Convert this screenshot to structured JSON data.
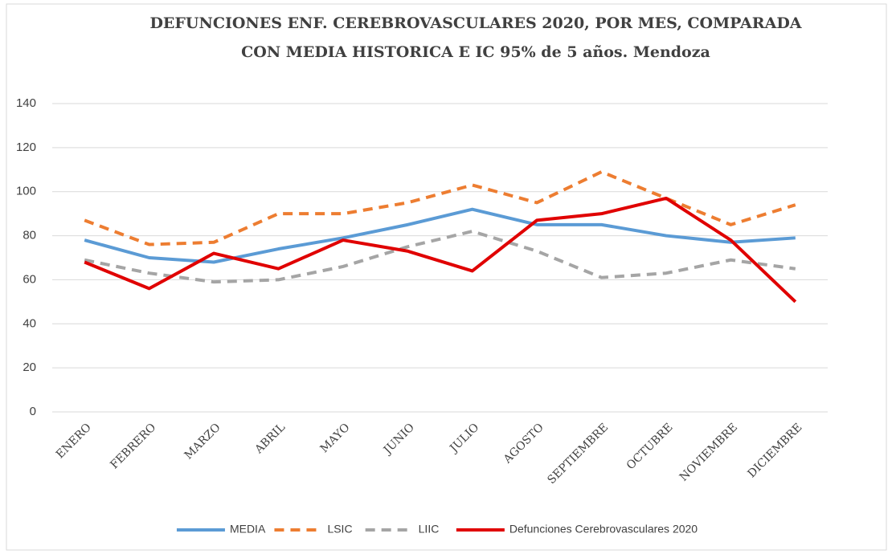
{
  "chart_data": {
    "type": "line",
    "title": [
      "DEFUNCIONES  ENF. CEREBROVASCULARES  2020, POR MES, COMPARADA",
      "CON  MEDIA HISTORICA E IC 95% de 5 años. Mendoza"
    ],
    "categories": [
      "ENERO",
      "FEBRERO",
      "MARZO",
      "ABRIL",
      "MAYO",
      "JUNIO",
      "JULIO",
      "AGOSTO",
      "SEPTIEMBRE",
      "OCTUBRE",
      "NOVIEMBRE",
      "DICIEMBRE"
    ],
    "series": [
      {
        "name": "MEDIA",
        "color": "#5b9bd5",
        "dashed": false,
        "values": [
          78,
          70,
          68,
          74,
          79,
          85,
          92,
          85,
          85,
          80,
          77,
          79
        ]
      },
      {
        "name": "LSIC",
        "color": "#ed7d31",
        "dashed": true,
        "values": [
          87,
          76,
          77,
          90,
          90,
          95,
          103,
          95,
          109,
          97,
          85,
          94
        ]
      },
      {
        "name": "LIIC",
        "color": "#a5a5a5",
        "dashed": true,
        "values": [
          69,
          63,
          59,
          60,
          66,
          75,
          82,
          73,
          61,
          63,
          69,
          65
        ]
      },
      {
        "name": "Defunciones Cerebrovasculares 2020",
        "color": "#e00000",
        "dashed": false,
        "values": [
          68,
          56,
          72,
          65,
          78,
          73,
          64,
          87,
          90,
          97,
          78,
          50
        ]
      }
    ],
    "ylim": [
      0,
      140
    ],
    "yticks": [
      0,
      20,
      40,
      60,
      80,
      100,
      120,
      140
    ],
    "grid": true
  }
}
